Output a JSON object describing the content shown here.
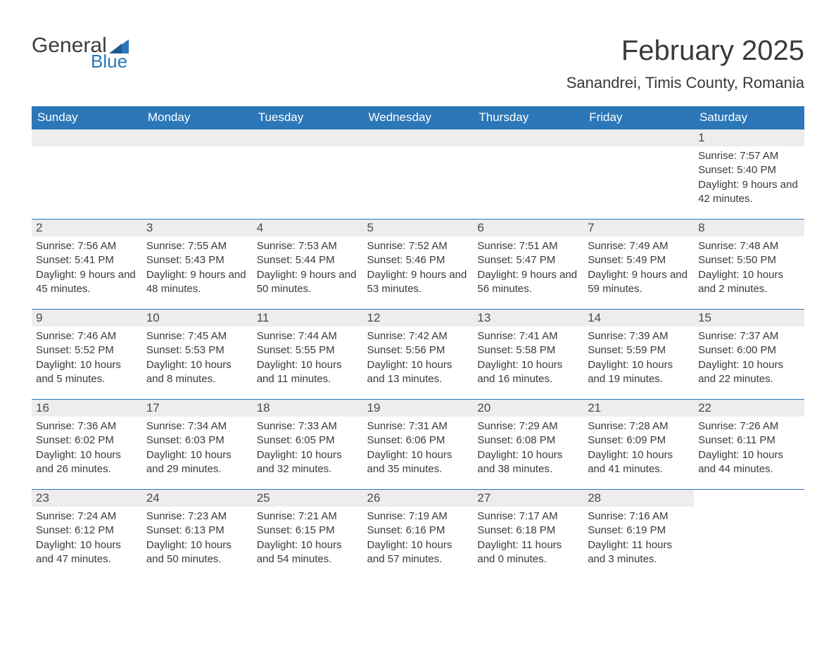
{
  "logo": {
    "text_general": "General",
    "text_blue": "Blue"
  },
  "header": {
    "month_title": "February 2025",
    "location": "Sanandrei, Timis County, Romania"
  },
  "colors": {
    "header_bg": "#2b77b8",
    "header_text": "#ffffff",
    "day_bar_bg": "#ededed",
    "row_border": "#2b77b8",
    "body_text": "#3a3a3a",
    "page_bg": "#ffffff"
  },
  "day_labels": [
    "Sunday",
    "Monday",
    "Tuesday",
    "Wednesday",
    "Thursday",
    "Friday",
    "Saturday"
  ],
  "weeks": [
    [
      null,
      null,
      null,
      null,
      null,
      null,
      {
        "n": "1",
        "sunrise": "Sunrise: 7:57 AM",
        "sunset": "Sunset: 5:40 PM",
        "daylight": "Daylight: 9 hours and 42 minutes."
      }
    ],
    [
      {
        "n": "2",
        "sunrise": "Sunrise: 7:56 AM",
        "sunset": "Sunset: 5:41 PM",
        "daylight": "Daylight: 9 hours and 45 minutes."
      },
      {
        "n": "3",
        "sunrise": "Sunrise: 7:55 AM",
        "sunset": "Sunset: 5:43 PM",
        "daylight": "Daylight: 9 hours and 48 minutes."
      },
      {
        "n": "4",
        "sunrise": "Sunrise: 7:53 AM",
        "sunset": "Sunset: 5:44 PM",
        "daylight": "Daylight: 9 hours and 50 minutes."
      },
      {
        "n": "5",
        "sunrise": "Sunrise: 7:52 AM",
        "sunset": "Sunset: 5:46 PM",
        "daylight": "Daylight: 9 hours and 53 minutes."
      },
      {
        "n": "6",
        "sunrise": "Sunrise: 7:51 AM",
        "sunset": "Sunset: 5:47 PM",
        "daylight": "Daylight: 9 hours and 56 minutes."
      },
      {
        "n": "7",
        "sunrise": "Sunrise: 7:49 AM",
        "sunset": "Sunset: 5:49 PM",
        "daylight": "Daylight: 9 hours and 59 minutes."
      },
      {
        "n": "8",
        "sunrise": "Sunrise: 7:48 AM",
        "sunset": "Sunset: 5:50 PM",
        "daylight": "Daylight: 10 hours and 2 minutes."
      }
    ],
    [
      {
        "n": "9",
        "sunrise": "Sunrise: 7:46 AM",
        "sunset": "Sunset: 5:52 PM",
        "daylight": "Daylight: 10 hours and 5 minutes."
      },
      {
        "n": "10",
        "sunrise": "Sunrise: 7:45 AM",
        "sunset": "Sunset: 5:53 PM",
        "daylight": "Daylight: 10 hours and 8 minutes."
      },
      {
        "n": "11",
        "sunrise": "Sunrise: 7:44 AM",
        "sunset": "Sunset: 5:55 PM",
        "daylight": "Daylight: 10 hours and 11 minutes."
      },
      {
        "n": "12",
        "sunrise": "Sunrise: 7:42 AM",
        "sunset": "Sunset: 5:56 PM",
        "daylight": "Daylight: 10 hours and 13 minutes."
      },
      {
        "n": "13",
        "sunrise": "Sunrise: 7:41 AM",
        "sunset": "Sunset: 5:58 PM",
        "daylight": "Daylight: 10 hours and 16 minutes."
      },
      {
        "n": "14",
        "sunrise": "Sunrise: 7:39 AM",
        "sunset": "Sunset: 5:59 PM",
        "daylight": "Daylight: 10 hours and 19 minutes."
      },
      {
        "n": "15",
        "sunrise": "Sunrise: 7:37 AM",
        "sunset": "Sunset: 6:00 PM",
        "daylight": "Daylight: 10 hours and 22 minutes."
      }
    ],
    [
      {
        "n": "16",
        "sunrise": "Sunrise: 7:36 AM",
        "sunset": "Sunset: 6:02 PM",
        "daylight": "Daylight: 10 hours and 26 minutes."
      },
      {
        "n": "17",
        "sunrise": "Sunrise: 7:34 AM",
        "sunset": "Sunset: 6:03 PM",
        "daylight": "Daylight: 10 hours and 29 minutes."
      },
      {
        "n": "18",
        "sunrise": "Sunrise: 7:33 AM",
        "sunset": "Sunset: 6:05 PM",
        "daylight": "Daylight: 10 hours and 32 minutes."
      },
      {
        "n": "19",
        "sunrise": "Sunrise: 7:31 AM",
        "sunset": "Sunset: 6:06 PM",
        "daylight": "Daylight: 10 hours and 35 minutes."
      },
      {
        "n": "20",
        "sunrise": "Sunrise: 7:29 AM",
        "sunset": "Sunset: 6:08 PM",
        "daylight": "Daylight: 10 hours and 38 minutes."
      },
      {
        "n": "21",
        "sunrise": "Sunrise: 7:28 AM",
        "sunset": "Sunset: 6:09 PM",
        "daylight": "Daylight: 10 hours and 41 minutes."
      },
      {
        "n": "22",
        "sunrise": "Sunrise: 7:26 AM",
        "sunset": "Sunset: 6:11 PM",
        "daylight": "Daylight: 10 hours and 44 minutes."
      }
    ],
    [
      {
        "n": "23",
        "sunrise": "Sunrise: 7:24 AM",
        "sunset": "Sunset: 6:12 PM",
        "daylight": "Daylight: 10 hours and 47 minutes."
      },
      {
        "n": "24",
        "sunrise": "Sunrise: 7:23 AM",
        "sunset": "Sunset: 6:13 PM",
        "daylight": "Daylight: 10 hours and 50 minutes."
      },
      {
        "n": "25",
        "sunrise": "Sunrise: 7:21 AM",
        "sunset": "Sunset: 6:15 PM",
        "daylight": "Daylight: 10 hours and 54 minutes."
      },
      {
        "n": "26",
        "sunrise": "Sunrise: 7:19 AM",
        "sunset": "Sunset: 6:16 PM",
        "daylight": "Daylight: 10 hours and 57 minutes."
      },
      {
        "n": "27",
        "sunrise": "Sunrise: 7:17 AM",
        "sunset": "Sunset: 6:18 PM",
        "daylight": "Daylight: 11 hours and 0 minutes."
      },
      {
        "n": "28",
        "sunrise": "Sunrise: 7:16 AM",
        "sunset": "Sunset: 6:19 PM",
        "daylight": "Daylight: 11 hours and 3 minutes."
      },
      null
    ]
  ]
}
